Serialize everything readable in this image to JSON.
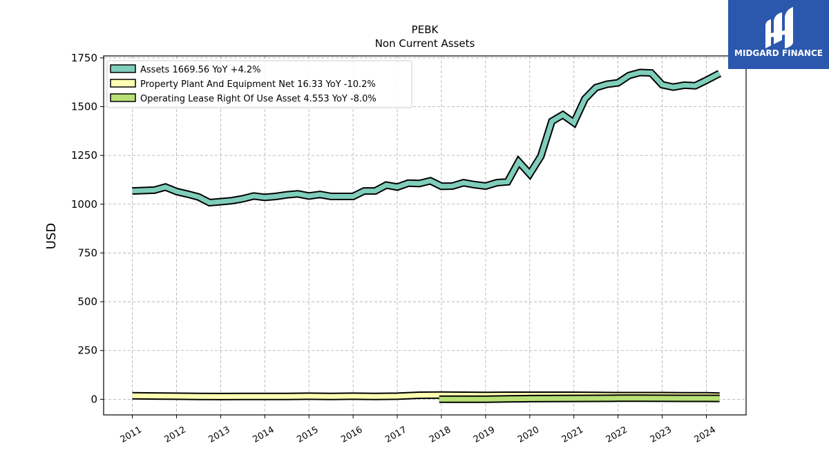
{
  "brand": {
    "name": "MIDGARD FINANCE",
    "bg_color": "#2b58ad"
  },
  "chart_data": {
    "type": "line",
    "title": "PEBK",
    "subtitle": "Non Current  Assets",
    "ylabel": "USD",
    "xlabel": "",
    "ylim": [
      -80,
      1760
    ],
    "xlim": [
      2010.35,
      2024.9
    ],
    "yticks": [
      0,
      250,
      500,
      750,
      1000,
      1250,
      1500,
      1750
    ],
    "xticks": [
      2011,
      2012,
      2013,
      2014,
      2015,
      2016,
      2017,
      2018,
      2019,
      2020,
      2021,
      2022,
      2023,
      2024
    ],
    "grid": true,
    "legend_position": "top-left",
    "series": [
      {
        "name": "Assets",
        "legend_label": "Assets  1669.56 YoY +4.2%",
        "color": "#7fcdbb",
        "points": [
          [
            2011.0,
            1068
          ],
          [
            2011.25,
            1070
          ],
          [
            2011.5,
            1072
          ],
          [
            2011.75,
            1088
          ],
          [
            2012.0,
            1065
          ],
          [
            2012.25,
            1052
          ],
          [
            2012.5,
            1037
          ],
          [
            2012.75,
            1008
          ],
          [
            2013.0,
            1013
          ],
          [
            2013.25,
            1018
          ],
          [
            2013.5,
            1028
          ],
          [
            2013.75,
            1042
          ],
          [
            2014.0,
            1035
          ],
          [
            2014.25,
            1040
          ],
          [
            2014.5,
            1048
          ],
          [
            2014.75,
            1053
          ],
          [
            2015.0,
            1042
          ],
          [
            2015.25,
            1050
          ],
          [
            2015.5,
            1040
          ],
          [
            2015.75,
            1040
          ],
          [
            2016.0,
            1040
          ],
          [
            2016.25,
            1068
          ],
          [
            2016.5,
            1068
          ],
          [
            2016.75,
            1098
          ],
          [
            2017.0,
            1088
          ],
          [
            2017.25,
            1108
          ],
          [
            2017.5,
            1106
          ],
          [
            2017.75,
            1120
          ],
          [
            2018.0,
            1092
          ],
          [
            2018.25,
            1093
          ],
          [
            2018.5,
            1110
          ],
          [
            2018.75,
            1100
          ],
          [
            2019.0,
            1093
          ],
          [
            2019.25,
            1110
          ],
          [
            2019.5,
            1115
          ],
          [
            2019.75,
            1218
          ],
          [
            2020.0,
            1155
          ],
          [
            2020.25,
            1245
          ],
          [
            2020.5,
            1425
          ],
          [
            2020.75,
            1458
          ],
          [
            2021.0,
            1418
          ],
          [
            2021.25,
            1540
          ],
          [
            2021.5,
            1598
          ],
          [
            2021.75,
            1615
          ],
          [
            2022.0,
            1622
          ],
          [
            2022.25,
            1660
          ],
          [
            2022.5,
            1675
          ],
          [
            2022.75,
            1673
          ],
          [
            2023.0,
            1612
          ],
          [
            2023.25,
            1600
          ],
          [
            2023.5,
            1610
          ],
          [
            2023.75,
            1607
          ],
          [
            2024.0,
            1635
          ],
          [
            2024.3,
            1670
          ]
        ]
      },
      {
        "name": "Property Plant And Equipment Net",
        "legend_label": "Property Plant And Equipment Net  16.33 YoY -10.2%",
        "color": "#ffffb3",
        "points": [
          [
            2011.0,
            18
          ],
          [
            2011.5,
            17
          ],
          [
            2012.0,
            16
          ],
          [
            2012.5,
            15
          ],
          [
            2013.0,
            14
          ],
          [
            2013.5,
            15
          ],
          [
            2014.0,
            15
          ],
          [
            2014.5,
            15
          ],
          [
            2015.0,
            16
          ],
          [
            2015.5,
            15
          ],
          [
            2016.0,
            16
          ],
          [
            2016.5,
            15
          ],
          [
            2017.0,
            16
          ],
          [
            2017.5,
            21
          ],
          [
            2018.0,
            22
          ],
          [
            2018.5,
            21
          ],
          [
            2019.0,
            20
          ],
          [
            2019.5,
            21
          ],
          [
            2020.0,
            21
          ],
          [
            2020.5,
            21
          ],
          [
            2021.0,
            21
          ],
          [
            2021.5,
            20
          ],
          [
            2022.0,
            19
          ],
          [
            2022.5,
            19
          ],
          [
            2023.0,
            19
          ],
          [
            2023.5,
            18
          ],
          [
            2024.0,
            18
          ],
          [
            2024.3,
            16.33
          ]
        ]
      },
      {
        "name": "Operating Lease Right Of Use Asset",
        "legend_label": "Operating Lease Right Of Use Asset  4.553 YoY -8.0%",
        "color": "#b8e076",
        "points": [
          [
            2017.95,
            0.5
          ],
          [
            2018.5,
            0.6
          ],
          [
            2019.0,
            0.8
          ],
          [
            2019.5,
            2
          ],
          [
            2020.0,
            3.5
          ],
          [
            2020.5,
            4
          ],
          [
            2021.0,
            4.5
          ],
          [
            2021.5,
            5
          ],
          [
            2022.0,
            5.5
          ],
          [
            2022.5,
            6
          ],
          [
            2023.0,
            5.3
          ],
          [
            2023.5,
            5
          ],
          [
            2024.0,
            4.9
          ],
          [
            2024.3,
            4.553
          ]
        ]
      }
    ]
  }
}
